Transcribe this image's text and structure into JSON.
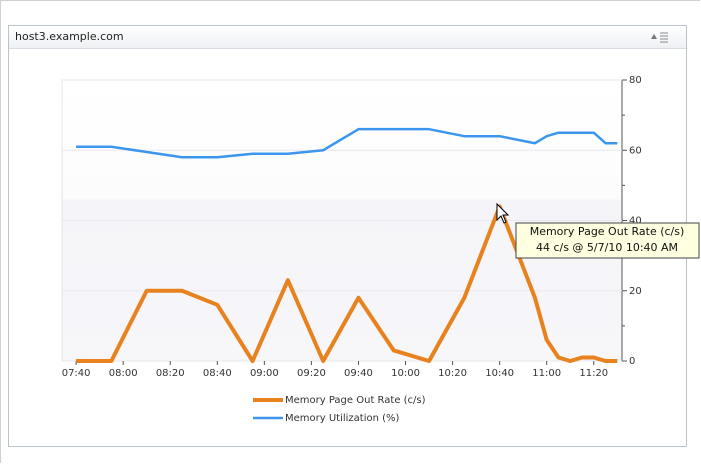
{
  "panel": {
    "title": "host3.example.com"
  },
  "chart_data": {
    "type": "line",
    "x": [
      "07:40",
      "07:55",
      "08:10",
      "08:25",
      "08:40",
      "08:55",
      "09:10",
      "09:25",
      "09:40",
      "09:55",
      "10:10",
      "10:25",
      "10:40",
      "10:55",
      "11:00",
      "11:05",
      "11:10",
      "11:15",
      "11:20",
      "11:25",
      "11:30"
    ],
    "series": [
      {
        "name": "Memory Page Out Rate (c/s)",
        "color": "#e8821e",
        "values": [
          0,
          0,
          20,
          20,
          16,
          0,
          23,
          0,
          18,
          3,
          0,
          18,
          44,
          18,
          6,
          1,
          0,
          1,
          1,
          0,
          0
        ]
      },
      {
        "name": "Memory Utilization (%)",
        "color": "#3c96ee",
        "values": [
          61,
          61,
          59.5,
          58,
          58,
          59,
          59,
          60,
          66,
          66,
          66,
          64,
          64,
          62,
          64,
          65,
          65,
          65,
          65,
          62,
          62
        ]
      }
    ],
    "xlim": [
      "07:34",
      "11:32"
    ],
    "xticks": [
      "07:40",
      "08:00",
      "08:20",
      "08:40",
      "09:00",
      "09:20",
      "09:40",
      "10:00",
      "10:20",
      "10:40",
      "11:00",
      "11:20"
    ],
    "ylim": [
      0,
      80
    ],
    "yticks": [
      0,
      20,
      40,
      60,
      80
    ],
    "grid": true,
    "tooltip": [
      "Memory Page Out Rate (c/s)",
      "44 c/s @ 5/7/10 10:40 AM"
    ]
  }
}
